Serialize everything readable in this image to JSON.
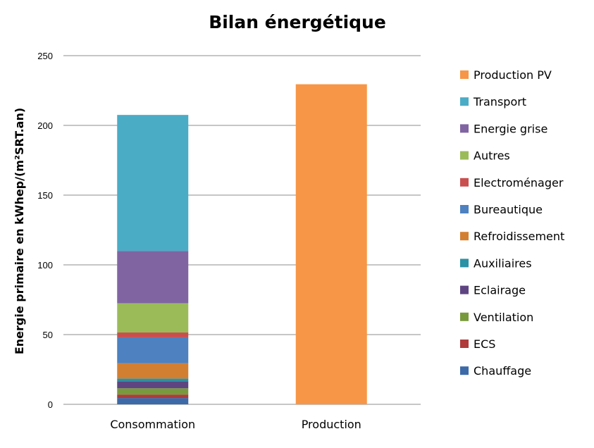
{
  "chart_data": {
    "type": "bar",
    "stacked": true,
    "title": "Bilan énergétique",
    "ylabel": "Energie primaire en kWhep/(m²SRT.an)",
    "xlabel": "",
    "categories": [
      "Consommation",
      "Production"
    ],
    "ylim": [
      0,
      250
    ],
    "yticks": [
      0,
      50,
      100,
      150,
      200,
      250
    ],
    "grid": true,
    "legend_position": "right",
    "series": [
      {
        "name": "Chauffage",
        "color": "#3c6aa8",
        "values": [
          4.5,
          0
        ]
      },
      {
        "name": "ECS",
        "color": "#b03a3a",
        "values": [
          2.5,
          0
        ]
      },
      {
        "name": "Ventilation",
        "color": "#799a3c",
        "values": [
          4.5,
          0
        ]
      },
      {
        "name": "Eclairage",
        "color": "#5e4582",
        "values": [
          5.0,
          0
        ]
      },
      {
        "name": "Auxiliaires",
        "color": "#2b91a5",
        "values": [
          2.0,
          0
        ]
      },
      {
        "name": "Refroidissement",
        "color": "#d37f32",
        "values": [
          11.0,
          0
        ]
      },
      {
        "name": "Bureautique",
        "color": "#4d81c0",
        "values": [
          18.5,
          0
        ]
      },
      {
        "name": "Electroménager",
        "color": "#c94f4f",
        "values": [
          3.5,
          0
        ]
      },
      {
        "name": "Autres",
        "color": "#9bbb59",
        "values": [
          21.0,
          0
        ]
      },
      {
        "name": "Energie grise",
        "color": "#8064a2",
        "values": [
          37.5,
          0
        ]
      },
      {
        "name": "Transport",
        "color": "#4bacc6",
        "values": [
          97.5,
          0
        ]
      },
      {
        "name": "Production PV",
        "color": "#f79646",
        "values": [
          0,
          229.5
        ]
      }
    ]
  }
}
